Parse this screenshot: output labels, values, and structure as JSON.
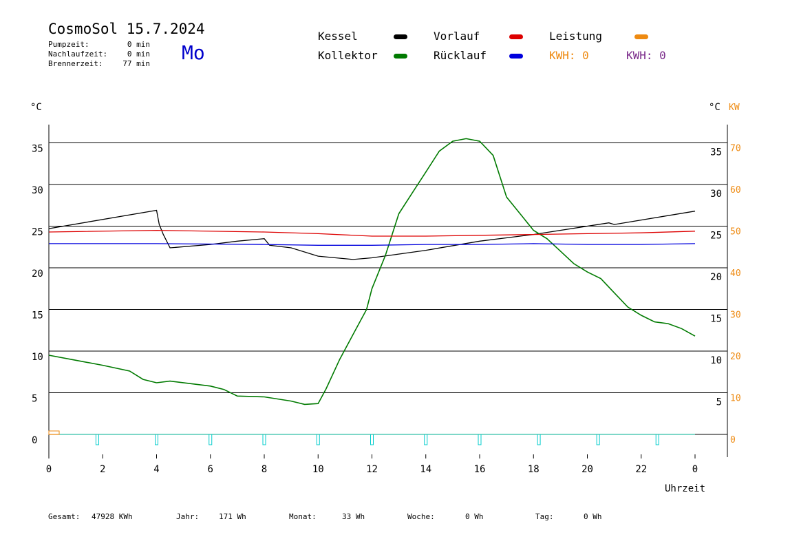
{
  "header": {
    "title": "CosmoSol 15.7.2024",
    "weekday": "Mo",
    "stats": [
      {
        "label": "Pumpzeit:",
        "value": "0 min"
      },
      {
        "label": "Nachlaufzeit:",
        "value": "0 min"
      },
      {
        "label": "Brennerzeit:",
        "value": "77 min"
      }
    ]
  },
  "legend": {
    "kessel": "Kessel",
    "kollektor": "Kollektor",
    "vorlauf": "Vorlauf",
    "ruecklauf": "Rücklauf",
    "leistung": "Leistung",
    "kwh_orange": "KWH: 0",
    "kwh_purple": "KWH: 0"
  },
  "colors": {
    "kessel": "#000000",
    "kollektor": "#007a00",
    "vorlauf": "#dd0000",
    "ruecklauf": "#0000dd",
    "leistung": "#ee8a11",
    "kwh_purple": "#7a2a8a",
    "pump": "#00cccc"
  },
  "footer": {
    "gesamt": {
      "label": "Gesamt:",
      "value": "47928 KWh"
    },
    "jahr": {
      "label": "Jahr:",
      "value": "171 Wh"
    },
    "monat": {
      "label": "Monat:",
      "value": "33 Wh"
    },
    "woche": {
      "label": "Woche:",
      "value": "0 Wh"
    },
    "tag": {
      "label": "Tag:",
      "value": "0 Wh"
    }
  },
  "chart_data": {
    "type": "line",
    "xlabel": "Uhrzeit",
    "ylabel_left": "°C",
    "ylabel_right": "°C",
    "ylabel_right2": "KW",
    "x_ticks": [
      "0",
      "2",
      "4",
      "6",
      "8",
      "10",
      "12",
      "14",
      "16",
      "18",
      "20",
      "22",
      "0"
    ],
    "y_ticks_left": [
      0,
      5,
      10,
      15,
      20,
      25,
      30,
      35
    ],
    "y_ticks_right": [
      5,
      10,
      15,
      20,
      25,
      30,
      35
    ],
    "y_ticks_kw": [
      0,
      10,
      20,
      30,
      40,
      50,
      60,
      70
    ],
    "xlim": [
      0,
      24
    ],
    "ylim": [
      -2.8,
      37.5
    ],
    "grid": true,
    "series": [
      {
        "name": "Kessel",
        "color": "#000000",
        "x": [
          0,
          4,
          4.1,
          4.25,
          4.5,
          6,
          7,
          8,
          8.2,
          9,
          10,
          11.3,
          12,
          14,
          16,
          18,
          20.8,
          21,
          24
        ],
        "y": [
          24.7,
          26.9,
          25.2,
          24.0,
          22.4,
          22.8,
          23.2,
          23.5,
          22.7,
          22.4,
          21.4,
          21.0,
          21.2,
          22.1,
          23.2,
          24.0,
          25.4,
          25.2,
          26.8
        ]
      },
      {
        "name": "Kollektor",
        "color": "#007a00",
        "x": [
          0,
          1,
          2,
          3,
          3.5,
          4,
          4.5,
          6,
          6.5,
          7,
          8,
          9,
          9.5,
          10,
          10.3,
          10.8,
          11.3,
          11.8,
          12,
          12.5,
          13,
          13.5,
          14,
          14.5,
          15,
          15.5,
          16,
          16.5,
          17,
          17.5,
          18,
          18.5,
          19,
          19.5,
          20,
          20.5,
          21,
          21.5,
          22,
          22.5,
          23,
          23.5,
          24
        ],
        "y": [
          9.5,
          8.9,
          8.3,
          7.6,
          6.6,
          6.2,
          6.4,
          5.8,
          5.4,
          4.6,
          4.5,
          4.0,
          3.6,
          3.7,
          5.5,
          9.0,
          12.0,
          15.0,
          17.5,
          21.5,
          26.5,
          29.0,
          31.5,
          34.0,
          35.2,
          35.5,
          35.2,
          33.5,
          28.5,
          26.5,
          24.5,
          23.5,
          22.0,
          20.5,
          19.5,
          18.7,
          17.0,
          15.3,
          14.3,
          13.5,
          13.3,
          12.7,
          11.8
        ]
      },
      {
        "name": "Vorlauf",
        "color": "#dd0000",
        "x": [
          0,
          4,
          8,
          10,
          12,
          14,
          16,
          18,
          20,
          22,
          24
        ],
        "y": [
          24.3,
          24.5,
          24.3,
          24.1,
          23.8,
          23.8,
          23.9,
          24.0,
          24.1,
          24.2,
          24.4
        ]
      },
      {
        "name": "Rücklauf",
        "color": "#0000dd",
        "x": [
          0,
          4,
          8,
          10,
          12,
          14,
          16,
          18,
          20,
          22,
          24
        ],
        "y": [
          22.9,
          22.9,
          22.8,
          22.7,
          22.7,
          22.8,
          22.8,
          22.9,
          22.8,
          22.8,
          22.9
        ]
      },
      {
        "name": "Leistung",
        "color": "#ee8a11",
        "x": [
          0,
          24
        ],
        "y": [
          0,
          0
        ]
      }
    ],
    "pump_pulses_hours": [
      1.8,
      4.0,
      6.0,
      8.0,
      10.0,
      12.0,
      14.0,
      16.0,
      18.2,
      20.4,
      22.6
    ]
  }
}
